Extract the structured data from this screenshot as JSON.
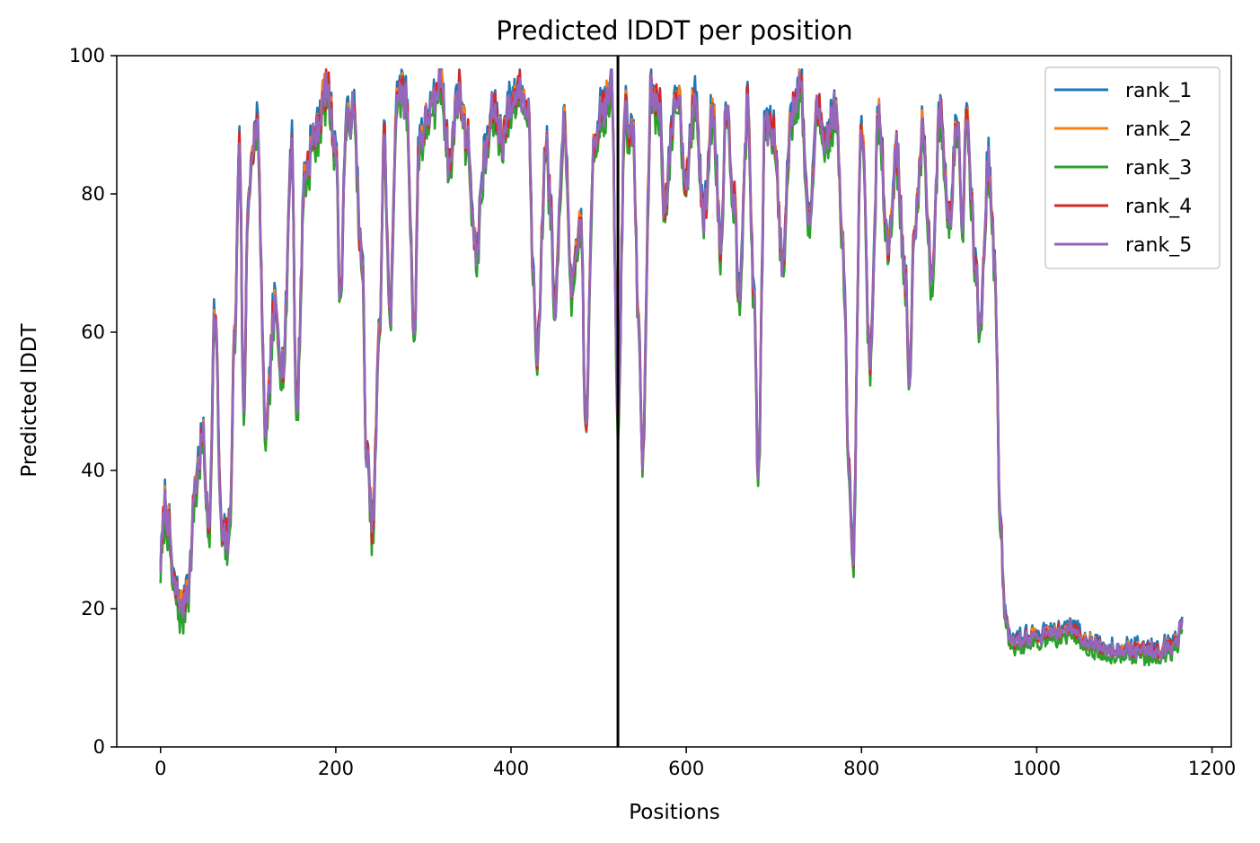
{
  "chart_data": {
    "type": "line",
    "title": "Predicted lDDT per position",
    "xlabel": "Positions",
    "ylabel": "Predicted lDDT",
    "xlim": [
      -50,
      1222
    ],
    "ylim": [
      0,
      100
    ],
    "xticks": [
      0,
      200,
      400,
      600,
      800,
      1000,
      1200
    ],
    "yticks": [
      0,
      20,
      40,
      60,
      80,
      100
    ],
    "grid": false,
    "legend_position": "top-right",
    "vline_x": 522,
    "series": [
      {
        "name": "rank_1",
        "color": "#1f77b4",
        "bias": 1.2,
        "seed": 11,
        "keypoints": [
          [
            0,
            27
          ],
          [
            5,
            35
          ],
          [
            10,
            31
          ],
          [
            15,
            23
          ],
          [
            25,
            20
          ],
          [
            32,
            24
          ],
          [
            40,
            38
          ],
          [
            48,
            45
          ],
          [
            55,
            31
          ],
          [
            62,
            63
          ],
          [
            70,
            30
          ],
          [
            78,
            30
          ],
          [
            85,
            60
          ],
          [
            90,
            89
          ],
          [
            95,
            48
          ],
          [
            100,
            80
          ],
          [
            110,
            90
          ],
          [
            120,
            45
          ],
          [
            130,
            63
          ],
          [
            140,
            55
          ],
          [
            150,
            88
          ],
          [
            155,
            48
          ],
          [
            165,
            83
          ],
          [
            175,
            88
          ],
          [
            190,
            95
          ],
          [
            200,
            87
          ],
          [
            205,
            65
          ],
          [
            212,
            90
          ],
          [
            220,
            92
          ],
          [
            230,
            70
          ],
          [
            235,
            42
          ],
          [
            242,
            32
          ],
          [
            250,
            60
          ],
          [
            255,
            88
          ],
          [
            262,
            62
          ],
          [
            270,
            95
          ],
          [
            280,
            94
          ],
          [
            290,
            60
          ],
          [
            295,
            88
          ],
          [
            310,
            92
          ],
          [
            320,
            97
          ],
          [
            330,
            84
          ],
          [
            340,
            95
          ],
          [
            350,
            88
          ],
          [
            360,
            71
          ],
          [
            370,
            85
          ],
          [
            380,
            92
          ],
          [
            390,
            88
          ],
          [
            400,
            93
          ],
          [
            410,
            95
          ],
          [
            420,
            92
          ],
          [
            425,
            70
          ],
          [
            430,
            57
          ],
          [
            440,
            88
          ],
          [
            445,
            78
          ],
          [
            450,
            62
          ],
          [
            460,
            90
          ],
          [
            470,
            66
          ],
          [
            480,
            76
          ],
          [
            485,
            46
          ],
          [
            495,
            88
          ],
          [
            505,
            93
          ],
          [
            515,
            95
          ],
          [
            522,
            47
          ],
          [
            530,
            92
          ],
          [
            540,
            87
          ],
          [
            545,
            63
          ],
          [
            550,
            42
          ],
          [
            560,
            95
          ],
          [
            570,
            92
          ],
          [
            575,
            78
          ],
          [
            590,
            95
          ],
          [
            600,
            82
          ],
          [
            610,
            94
          ],
          [
            620,
            76
          ],
          [
            630,
            92
          ],
          [
            640,
            72
          ],
          [
            645,
            93
          ],
          [
            655,
            79
          ],
          [
            660,
            66
          ],
          [
            670,
            92
          ],
          [
            678,
            63
          ],
          [
            682,
            39
          ],
          [
            690,
            90
          ],
          [
            700,
            88
          ],
          [
            710,
            70
          ],
          [
            720,
            92
          ],
          [
            730,
            96
          ],
          [
            740,
            76
          ],
          [
            750,
            92
          ],
          [
            760,
            88
          ],
          [
            770,
            92
          ],
          [
            780,
            70
          ],
          [
            785,
            40
          ],
          [
            790,
            26
          ],
          [
            800,
            90
          ],
          [
            810,
            56
          ],
          [
            820,
            92
          ],
          [
            830,
            72
          ],
          [
            840,
            86
          ],
          [
            850,
            68
          ],
          [
            855,
            52
          ],
          [
            860,
            74
          ],
          [
            870,
            89
          ],
          [
            880,
            68
          ],
          [
            890,
            92
          ],
          [
            900,
            76
          ],
          [
            910,
            92
          ],
          [
            915,
            75
          ],
          [
            920,
            92
          ],
          [
            930,
            70
          ],
          [
            935,
            60
          ],
          [
            945,
            84
          ],
          [
            952,
            70
          ],
          [
            958,
            35
          ],
          [
            963,
            20
          ],
          [
            970,
            15
          ],
          [
            1000,
            16
          ],
          [
            1040,
            17
          ],
          [
            1060,
            15
          ],
          [
            1080,
            14
          ],
          [
            1100,
            14
          ],
          [
            1140,
            14
          ],
          [
            1160,
            15
          ],
          [
            1165,
            18
          ]
        ]
      },
      {
        "name": "rank_2",
        "color": "#ff7f0e",
        "bias": 0.3,
        "seed": 23
      },
      {
        "name": "rank_3",
        "color": "#2ca02c",
        "bias": -1.5,
        "seed": 37
      },
      {
        "name": "rank_4",
        "color": "#d62728",
        "bias": 0.2,
        "seed": 53
      },
      {
        "name": "rank_5",
        "color": "#9467bd",
        "bias": 0.0,
        "seed": 71
      }
    ]
  }
}
